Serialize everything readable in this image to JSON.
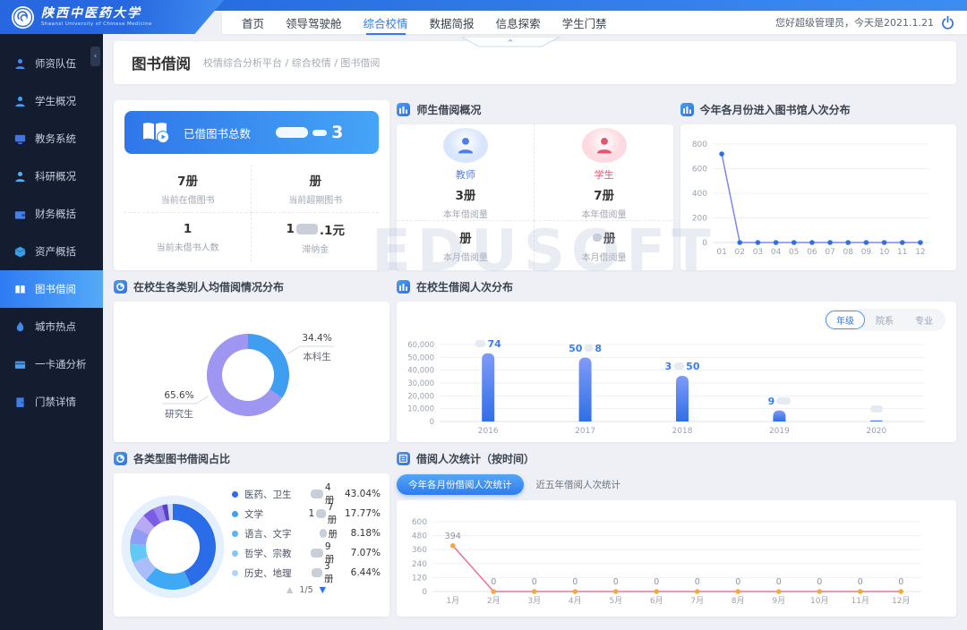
{
  "header": {
    "logo_title": "陕西中医药大学",
    "logo_subtitle": "Shaanxi University of Chinese Medicine",
    "nav": [
      "首页",
      "领导驾驶舱",
      "综合校情",
      "数据简报",
      "信息探索",
      "学生门禁"
    ],
    "active_nav": 2,
    "greeting": "您好超级管理员，今天是2021.1.21",
    "notch": "∧"
  },
  "sidebar": {
    "collapse": "‹",
    "active_index": 6,
    "items": [
      {
        "label": "师资队伍",
        "icon": "user"
      },
      {
        "label": "学生概况",
        "icon": "user"
      },
      {
        "label": "教务系统",
        "icon": "desktop"
      },
      {
        "label": "科研概况",
        "icon": "user"
      },
      {
        "label": "财务概括",
        "icon": "wallet"
      },
      {
        "label": "资产概括",
        "icon": "asset"
      },
      {
        "label": "图书借阅",
        "icon": "book"
      },
      {
        "label": "城市热点",
        "icon": "fire"
      },
      {
        "label": "一卡通分析",
        "icon": "card"
      },
      {
        "label": "门禁详情",
        "icon": "door"
      }
    ]
  },
  "page": {
    "title": "图书借阅",
    "breadcrumb": "校情综合分析平台 / 综合校情 / 图书借阅"
  },
  "watermark": "EDUSOFT",
  "cards": {
    "borrow_summary": {
      "banner_label": "已借图书总数",
      "banner_value_parts": [
        [
          "cloud",
          36,
          12
        ],
        [
          "cloud",
          16,
          7
        ],
        [
          "text",
          "3"
        ]
      ],
      "stats": [
        {
          "parts": [
            [
              "text",
              "7册"
            ]
          ],
          "label": "当前在借图书"
        },
        {
          "parts": [
            [
              "text",
              "册"
            ]
          ],
          "label": "当前超期图书"
        },
        {
          "parts": [
            [
              "text",
              "1"
            ]
          ],
          "label": "当前未借书人数"
        },
        {
          "parts": [
            [
              "text",
              "1"
            ],
            [
              "blob",
              24,
              12
            ],
            [
              "text",
              ".1元"
            ]
          ],
          "label": "滞纳金"
        }
      ]
    },
    "teacher_student": {
      "title": "师生借阅概况",
      "groups": [
        {
          "name": "教师",
          "color": "#4f7df0",
          "bg": "#d9e5fb",
          "year_parts": [
            [
              "text",
              "3册"
            ]
          ],
          "year_label": "本年借阅量",
          "month_parts": [
            [
              "text",
              "册"
            ]
          ],
          "month_label": "本月借阅量"
        },
        {
          "name": "学生",
          "color": "#e8536f",
          "bg": "#fbdae1",
          "year_parts": [
            [
              "text",
              "7册"
            ]
          ],
          "year_label": "本年借阅量",
          "month_parts": [
            [
              "blob",
              10,
              9
            ],
            [
              "text",
              "册"
            ]
          ],
          "month_label": "本月借阅量"
        }
      ]
    }
  },
  "chart_data": [
    {
      "id": "monthly_library_entries",
      "type": "line",
      "title": "今年各月份进入图书馆人次分布",
      "categories": [
        "01",
        "02",
        "03",
        "04",
        "05",
        "06",
        "07",
        "08",
        "09",
        "10",
        "11",
        "12"
      ],
      "values": [
        720,
        0,
        0,
        0,
        0,
        0,
        0,
        0,
        0,
        0,
        0,
        0
      ],
      "ylim": [
        0,
        800
      ],
      "yticks": [
        0,
        200,
        400,
        600,
        800
      ],
      "line_color": "#7b86f2",
      "point_color": "#2e6fe8",
      "show_point_labels": false
    },
    {
      "id": "student_borrow_by_year",
      "type": "bar",
      "title": "在校生借阅人次分布",
      "tabs": [
        "年级",
        "院系",
        "专业"
      ],
      "active_tab": 0,
      "categories": [
        "2016",
        "2017",
        "2018",
        "2019",
        "2020"
      ],
      "values": [
        53200,
        49800,
        35600,
        8600,
        900
      ],
      "value_label_parts": [
        [
          [
            "blob",
            12,
            8
          ],
          [
            "text",
            "74"
          ]
        ],
        [
          [
            "text",
            "50"
          ],
          [
            "blob",
            10,
            8
          ],
          [
            "text",
            "8"
          ]
        ],
        [
          [
            "text",
            "3"
          ],
          [
            "blob",
            12,
            8
          ],
          [
            "text",
            "50"
          ]
        ],
        [
          [
            "text",
            "9"
          ],
          [
            "blob",
            16,
            8
          ]
        ],
        [
          [
            "blob",
            14,
            8
          ]
        ]
      ],
      "ylim": [
        0,
        60000
      ],
      "yticks": [
        0,
        10000,
        20000,
        30000,
        40000,
        50000,
        60000
      ],
      "bar_color_top": "#7f9bf8",
      "bar_color_bottom": "#2f6fe8"
    },
    {
      "id": "per_capita_borrow_share",
      "type": "donut",
      "title": "在校生各类别人均借阅情况分布",
      "slices": [
        {
          "label": "本科生",
          "pct": 34.4,
          "pct_label": "34.4%",
          "color": "#3f9ef2"
        },
        {
          "label": "研究生",
          "pct": 65.6,
          "pct_label": "65.6%",
          "color": "#9e96f0"
        }
      ]
    },
    {
      "id": "book_type_share",
      "type": "donut",
      "title": "各类型图书借阅占比",
      "slices": [
        {
          "pct": 43.04,
          "color": "#2b6ce8"
        },
        {
          "pct": 17.77,
          "color": "#3fa9f5"
        },
        {
          "pct": 8.18,
          "color": "#a9bdf8"
        },
        {
          "pct": 7.07,
          "color": "#63c8f6"
        },
        {
          "pct": 6.44,
          "color": "#8f9df5"
        },
        {
          "pct": 5.5,
          "color": "#b9a9f4"
        },
        {
          "pct": 4.5,
          "color": "#7a5ce6"
        },
        {
          "pct": 3.5,
          "color": "#9b86f0"
        },
        {
          "pct": 2.0,
          "color": "#5940c9"
        },
        {
          "pct": 2.0,
          "color": "#cdd9fb"
        }
      ],
      "legend": [
        {
          "label": "医药、卫生",
          "dot": "#2b6ce8",
          "value_parts": [
            [
              "blob",
              14,
              10
            ],
            [
              "text",
              "4册"
            ]
          ],
          "pct": "43.04%"
        },
        {
          "label": "文学",
          "dot": "#3f9ef2",
          "value_parts": [
            [
              "text",
              "1"
            ],
            [
              "blob",
              12,
              10
            ],
            [
              "text",
              "7册"
            ]
          ],
          "pct": "17.77%"
        },
        {
          "label": "语言、文字",
          "dot": "#5bb3f5",
          "value_parts": [
            [
              "blob",
              8,
              10
            ],
            [
              "text",
              "册"
            ]
          ],
          "pct": "8.18%"
        },
        {
          "label": "哲学、宗教",
          "dot": "#85c6f8",
          "value_parts": [
            [
              "blob",
              14,
              10
            ],
            [
              "text",
              "9册"
            ]
          ],
          "pct": "7.07%"
        },
        {
          "label": "历史、地理",
          "dot": "#a9d6fa",
          "value_parts": [
            [
              "blob",
              12,
              10
            ],
            [
              "text",
              "3册"
            ]
          ],
          "pct": "6.44%"
        }
      ],
      "pagination": "1/5",
      "pager_up": "▲",
      "pager_down": "▼"
    },
    {
      "id": "borrow_count_by_month",
      "type": "line",
      "title": "借阅人次统计（按时间）",
      "buttons": [
        "今年各月份借阅人次统计",
        "近五年借阅人次统计"
      ],
      "active_button": 0,
      "categories": [
        "1月",
        "2月",
        "3月",
        "4月",
        "5月",
        "6月",
        "7月",
        "8月",
        "9月",
        "10月",
        "11月",
        "12月"
      ],
      "values": [
        394,
        0,
        0,
        0,
        0,
        0,
        0,
        0,
        0,
        0,
        0,
        0
      ],
      "point_labels": [
        "394",
        "0",
        "0",
        "0",
        "0",
        "0",
        "0",
        "0",
        "0",
        "0",
        "0",
        "0"
      ],
      "ylim": [
        0,
        600
      ],
      "yticks": [
        0,
        120,
        240,
        360,
        480,
        600
      ],
      "line_color": "#ef7296",
      "point_color": "#f5a83c",
      "show_point_labels": true
    }
  ]
}
